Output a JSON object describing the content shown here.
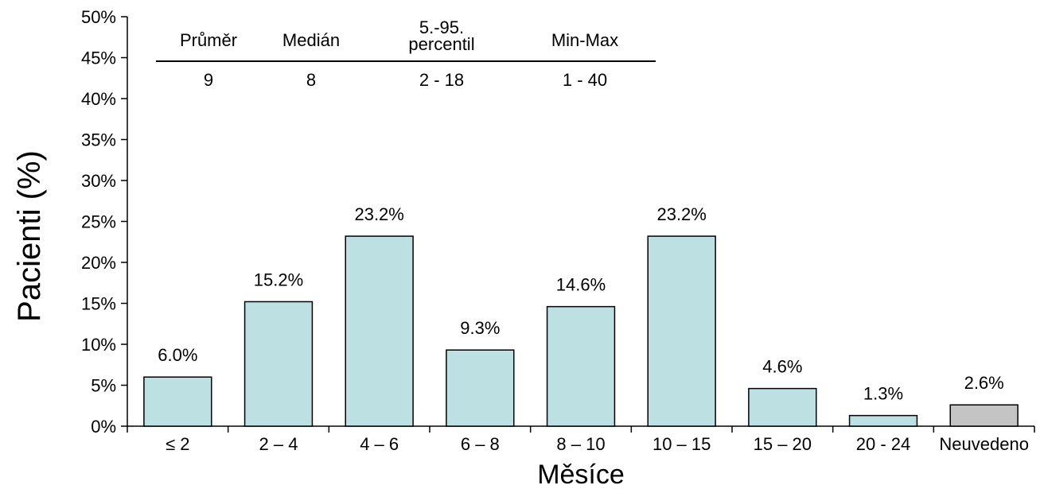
{
  "stats_table": {
    "headers": [
      "Průměr",
      "Medián",
      "5.-95.",
      "percentil",
      "Min-Max"
    ],
    "values": [
      "9",
      "8",
      "2 - 18",
      "1 - 40"
    ]
  },
  "chart_data": {
    "type": "bar",
    "xlabel": "Měsíce",
    "ylabel": "Pacienti (%)",
    "ylim": [
      0,
      50
    ],
    "yticks": [
      "0%",
      "5%",
      "10%",
      "15%",
      "20%",
      "25%",
      "30%",
      "35%",
      "40%",
      "45%",
      "50%"
    ],
    "categories": [
      "≤ 2",
      "2 – 4",
      "4 – 6",
      "6 – 8",
      "8 – 10",
      "10 – 15",
      "15 – 20",
      "20 - 24",
      "Neuvedeno"
    ],
    "values": [
      6.0,
      15.2,
      23.2,
      9.3,
      14.6,
      23.2,
      4.6,
      1.3,
      2.6
    ],
    "value_labels": [
      "6.0%",
      "15.2%",
      "23.2%",
      "9.3%",
      "14.6%",
      "23.2%",
      "4.6%",
      "1.3%",
      "2.6%"
    ],
    "colors": [
      "#bde0e3",
      "#bde0e3",
      "#bde0e3",
      "#bde0e3",
      "#bde0e3",
      "#bde0e3",
      "#bde0e3",
      "#bde0e3",
      "#c4c4c4"
    ],
    "grid": false
  }
}
